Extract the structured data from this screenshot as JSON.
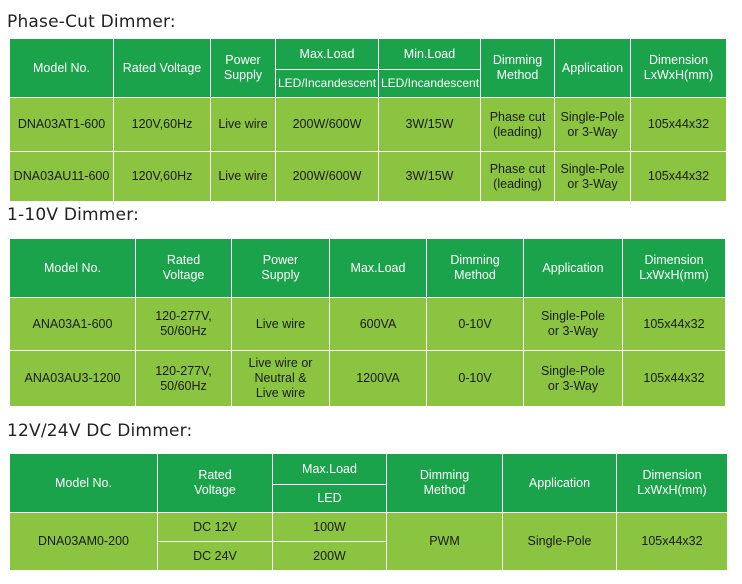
{
  "phase_cut": {
    "title": "Phase-Cut Dimmer:",
    "headers": {
      "model_no": "Model No.",
      "rated_voltage": "Rated Voltage",
      "power_supply": [
        "Power",
        "Supply"
      ],
      "max_load": "Max.Load",
      "max_load_sub": "LED/Incandescent",
      "min_load": "Min.Load",
      "min_load_sub": "LED/Incandescent",
      "dimming_method": [
        "Dimming",
        "Method"
      ],
      "application": "Application",
      "dimension": [
        "Dimension",
        "LxWxH(mm)"
      ]
    },
    "rows": [
      {
        "model": "DNA03AT1-600",
        "voltage": "120V,60Hz",
        "power": "Live wire",
        "max_load": "200W/600W",
        "min_load": "3W/15W",
        "dimming": [
          "Phase cut",
          "(leading)"
        ],
        "application": [
          "Single-Pole",
          "or 3-Way"
        ],
        "dimension": "105x44x32"
      },
      {
        "model": "DNA03AU11-600",
        "voltage": "120V,60Hz",
        "power": "Live wire",
        "max_load": "200W/600W",
        "min_load": "3W/15W",
        "dimming": [
          "Phase cut",
          "(leading)"
        ],
        "application": [
          "Single-Pole",
          "or 3-Way"
        ],
        "dimension": "105x44x32"
      }
    ]
  },
  "zero_ten": {
    "title": "1-10V Dimmer:",
    "headers": {
      "model_no": "Model No.",
      "rated_voltage": [
        "Rated",
        "Voltage"
      ],
      "power_supply": [
        "Power",
        "Supply"
      ],
      "max_load": "Max.Load",
      "dimming_method": [
        "Dimming",
        "Method"
      ],
      "application": "Application",
      "dimension": [
        "Dimension",
        "LxWxH(mm)"
      ]
    },
    "rows": [
      {
        "model": "ANA03A1-600",
        "voltage": [
          "120-277V,",
          "50/60Hz"
        ],
        "power": [
          "Live wire"
        ],
        "max_load": "600VA",
        "dimming": "0-10V",
        "application": [
          "Single-Pole",
          "or 3-Way"
        ],
        "dimension": "105x44x32"
      },
      {
        "model": "ANA03AU3-1200",
        "voltage": [
          "120-277V,",
          "50/60Hz"
        ],
        "power": [
          "Live wire or",
          "Neutral  &",
          "Live wire"
        ],
        "max_load": "1200VA",
        "dimming": "0-10V",
        "application": [
          "Single-Pole",
          "or 3-Way"
        ],
        "dimension": "105x44x32"
      }
    ]
  },
  "dc": {
    "title": "12V/24V DC Dimmer:",
    "headers": {
      "model_no": "Model No.",
      "rated_voltage": [
        "Rated",
        "Voltage"
      ],
      "max_load": "Max.Load",
      "max_load_sub": "LED",
      "dimming_method": [
        "Dimming",
        "Method"
      ],
      "application": "Application",
      "dimension": [
        "Dimension",
        "LxWxH(mm)"
      ]
    },
    "row": {
      "model": "DNA03AM0-200",
      "voltage_12": "DC  12V",
      "load_12": "100W",
      "voltage_24": "DC  24V",
      "load_24": "200W",
      "dimming": "PWM",
      "application": "Single-Pole",
      "dimension": "105x44x32"
    }
  }
}
